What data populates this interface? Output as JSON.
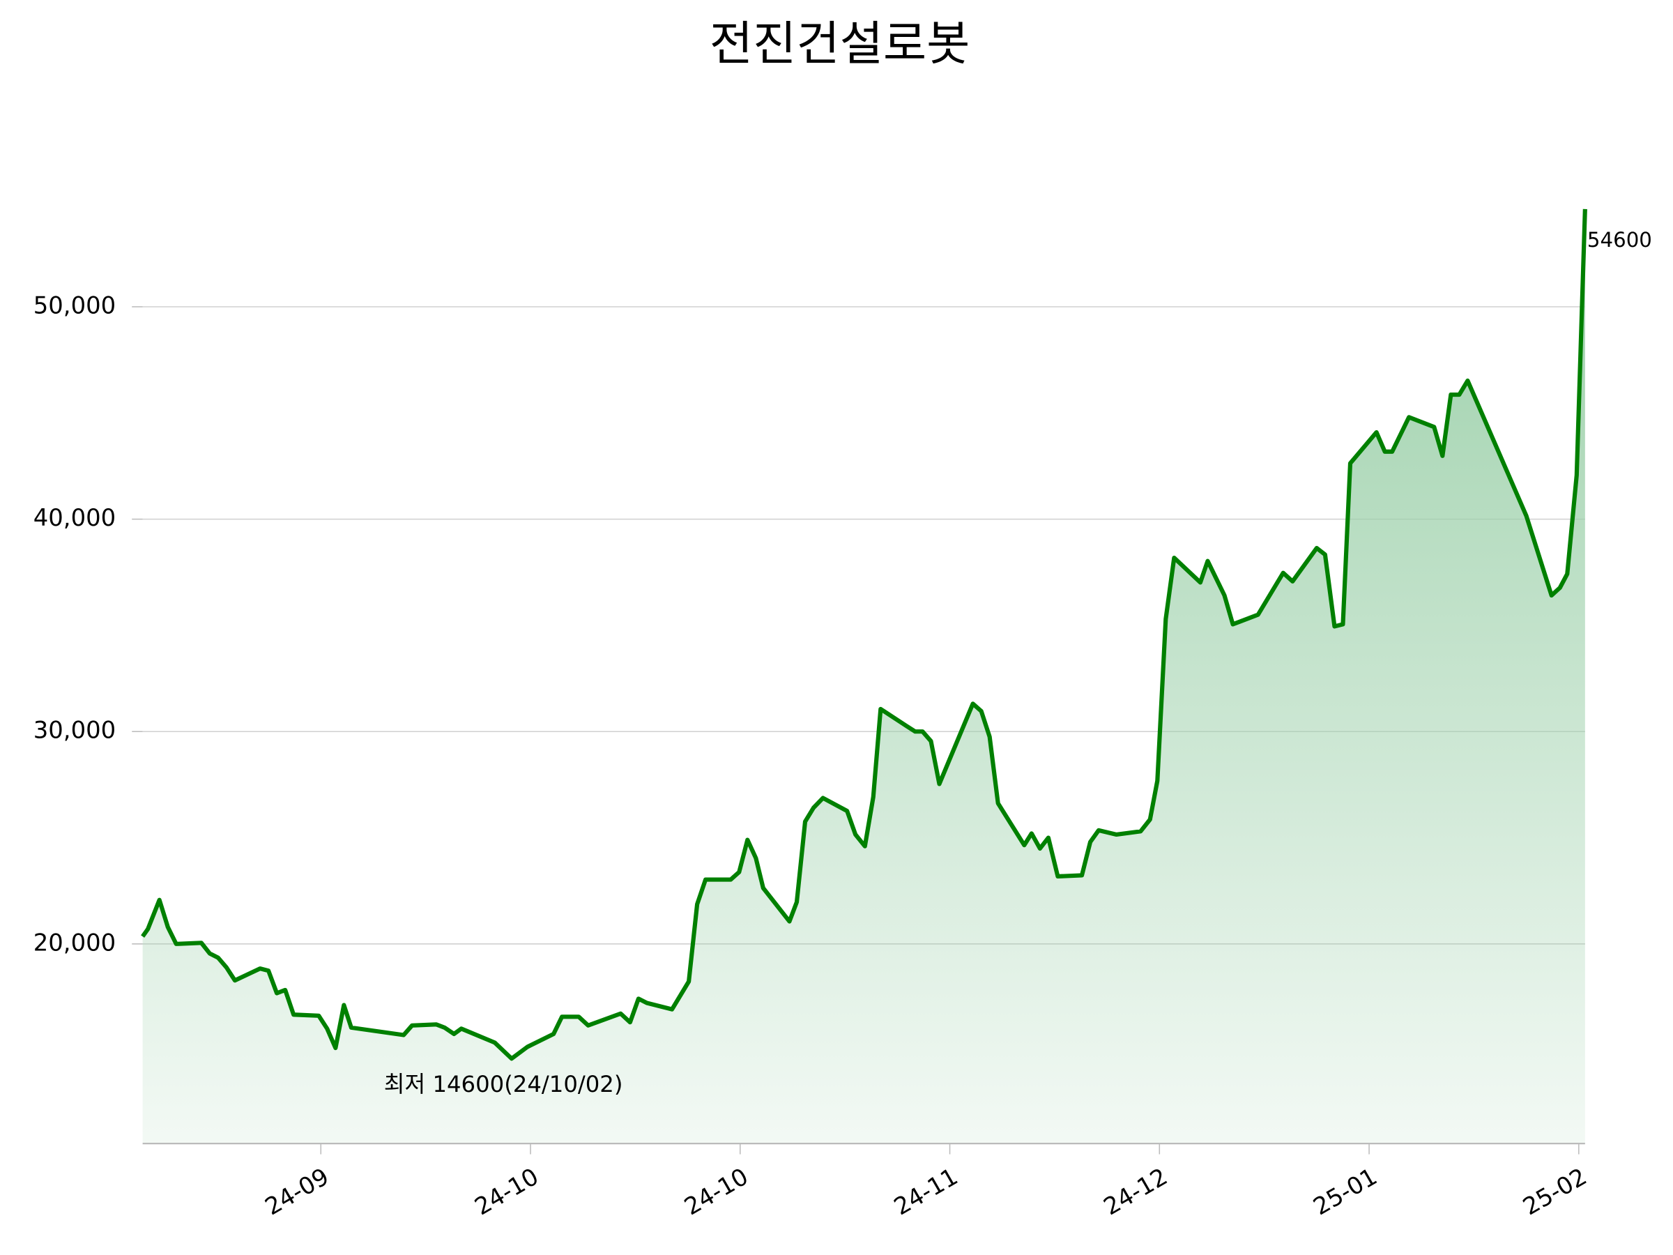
{
  "chart_data": {
    "type": "area",
    "title": "전진건설로봇",
    "x": [
      0,
      0.5,
      1.6,
      2.4,
      3.2,
      5.6,
      6.4,
      7.2,
      8.0,
      8.8,
      11.2,
      12.0,
      12.8,
      13.6,
      14.4,
      16.8,
      17.6,
      18.4,
      19.2,
      19.9,
      24.9,
      25.7,
      28.0,
      28.8,
      29.7,
      30.4,
      33.6,
      35.2,
      36.7,
      39.2,
      40.0,
      41.6,
      42.5,
      45.6,
      46.5,
      47.3,
      48.1,
      50.5,
      52.1,
      52.9,
      53.7,
      56.1,
      56.9,
      57.7,
      58.5,
      59.2,
      61.7,
      62.4,
      63.2,
      64.0,
      64.9,
      67.2,
      68.0,
      68.9,
      69.7,
      70.4,
      72.9,
      73.7,
      74.4,
      75.2,
      76.0,
      79.2,
      80.0,
      80.8,
      81.6,
      84.1,
      84.8,
      85.6,
      86.4,
      87.3,
      89.6,
      90.4,
      91.2,
      92.9,
      95.2,
      96.1,
      96.8,
      97.6,
      98.4,
      100.9,
      101.6,
      103.2,
      104.0,
      106.4,
      108.8,
      109.7,
      112.0,
      112.8,
      113.7,
      114.5,
      115.2,
      117.7,
      118.5,
      119.2,
      120.0,
      120.8,
      123.2,
      124.0,
      124.8,
      125.6,
      126.4,
      132.0,
      134.4,
      135.2,
      135.9,
      136.8,
      137.6
    ],
    "values": [
      20350,
      20700,
      22070,
      20800,
      20000,
      20050,
      19550,
      19350,
      18890,
      18280,
      18840,
      18740,
      17680,
      17830,
      16670,
      16620,
      16010,
      15100,
      17120,
      16060,
      15710,
      16160,
      16210,
      16060,
      15760,
      16010,
      15350,
      14600,
      15150,
      15760,
      16570,
      16570,
      16160,
      16720,
      16310,
      17420,
      17220,
      16920,
      18230,
      21870,
      23030,
      23030,
      23380,
      24900,
      24040,
      22630,
      21060,
      21970,
      25760,
      26410,
      26870,
      26260,
      25150,
      24600,
      26920,
      31060,
      30250,
      30000,
      30000,
      29550,
      27530,
      31310,
      30960,
      29750,
      26620,
      24650,
      25200,
      24490,
      25000,
      23180,
      23230,
      24800,
      25350,
      25150,
      25300,
      25860,
      27680,
      35300,
      38180,
      37020,
      38030,
      36410,
      35050,
      35500,
      37470,
      37070,
      38640,
      38330,
      34950,
      35050,
      42630,
      44090,
      43180,
      43180,
      43990,
      44800,
      44340,
      42980,
      45860,
      45860,
      46520,
      40150,
      36410,
      36770,
      37420,
      42070,
      54600
    ],
    "color": "#008000",
    "fill_color": "#9acfa8",
    "xlim": [
      0,
      137.6
    ],
    "xticks": [
      {
        "value": 17,
        "label": "24-09"
      },
      {
        "value": 37,
        "label": "24-10"
      },
      {
        "value": 57,
        "label": "24-10"
      },
      {
        "value": 77,
        "label": "24-11"
      },
      {
        "value": 97,
        "label": "24-12"
      },
      {
        "value": 117,
        "label": "25-01"
      },
      {
        "value": 137,
        "label": "25-02"
      }
    ],
    "ylim": [
      10600,
      56000
    ],
    "yticks": [
      {
        "value": 20000,
        "label": "20,000"
      },
      {
        "value": 30000,
        "label": "30,000"
      },
      {
        "value": 40000,
        "label": "40,000"
      },
      {
        "value": 50000,
        "label": "50,000"
      }
    ],
    "grid": true,
    "annotation": "최저 14600(24/10/02)",
    "annotation_color": "#0000ff"
  }
}
